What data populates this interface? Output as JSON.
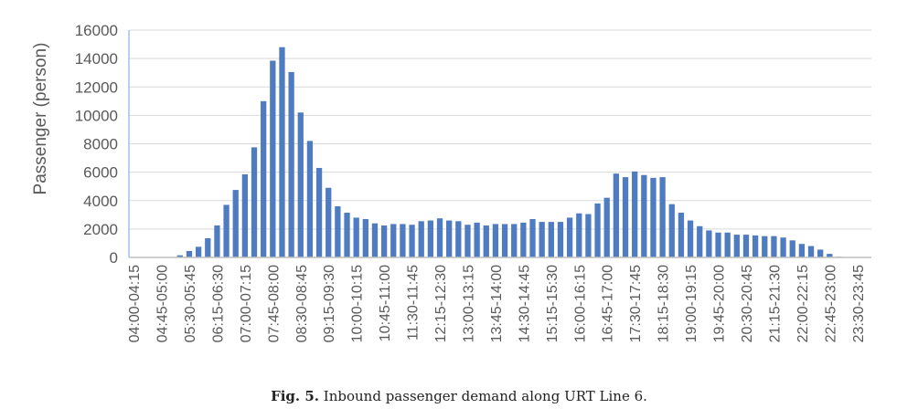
{
  "chart_data": {
    "type": "bar",
    "title": "",
    "xlabel": "",
    "ylabel": "Passenger (person)",
    "ylim": [
      0,
      16000
    ],
    "yticks": [
      0,
      2000,
      4000,
      6000,
      8000,
      10000,
      12000,
      14000,
      16000
    ],
    "grid": true,
    "legend": "none",
    "bar_color": "#4f7cc0",
    "categories": [
      "04:00-04:15",
      "04:15-04:30",
      "04:30-04:45",
      "04:45-05:00",
      "05:00-05:15",
      "05:15-05:30",
      "05:30-05:45",
      "05:45-06:00",
      "06:00-06:15",
      "06:15-06:30",
      "06:30-06:45",
      "06:45-07:00",
      "07:00-07:15",
      "07:15-07:30",
      "07:30-07:45",
      "07:45-08:00",
      "08:00-08:15",
      "08:15-08:30",
      "08:30-08:45",
      "08:45-09:00",
      "09:00-09:15",
      "09:15-09:30",
      "09:30-09:45",
      "09:45-10:00",
      "10:00-10:15",
      "10:15-10:30",
      "10:30-10:45",
      "10:45-11:00",
      "11:00-11:15",
      "11:15-11:30",
      "11:30-11:45",
      "11:45-12:00",
      "12:00-12:15",
      "12:15-12:30",
      "12:30-12:45",
      "12:45-13:00",
      "13:00-13:15",
      "13:15-13:30",
      "13:30-13:45",
      "13:45-14:00",
      "14:00-14:15",
      "14:15-14:30",
      "14:30-14:45",
      "14:45-15:00",
      "15:00-15:15",
      "15:15-15:30",
      "15:30-15:45",
      "15:45-16:00",
      "16:00-16:15",
      "16:15-16:30",
      "16:30-16:45",
      "16:45-17:00",
      "17:00-17:15",
      "17:15-17:30",
      "17:30-17:45",
      "17:45-18:00",
      "18:00-18:15",
      "18:15-18:30",
      "18:30-18:45",
      "18:45-19:00",
      "19:00-19:15",
      "19:15-19:30",
      "19:30-19:45",
      "19:45-20:00",
      "20:00-20:15",
      "20:15-20:30",
      "20:30-20:45",
      "20:45-21:00",
      "21:00-21:15",
      "21:15-21:30",
      "21:30-21:45",
      "21:45-22:00",
      "22:00-22:15",
      "22:15-22:30",
      "22:30-22:45",
      "22:45-23:00",
      "23:00-23:15",
      "23:15-23:30",
      "23:30-23:45",
      "23:45-24:00"
    ],
    "tick_labels": [
      "04:00-04:15",
      "",
      "",
      "04:45-05:00",
      "",
      "",
      "05:30-05:45",
      "",
      "",
      "06:15-06:30",
      "",
      "",
      "07:00-07:15",
      "",
      "",
      "07:45-08:00",
      "",
      "",
      "08:30-08:45",
      "",
      "",
      "09:15-09:30",
      "",
      "",
      "10:00-10:15",
      "",
      "",
      "10:45-11:00",
      "",
      "",
      "11:30-11:45",
      "",
      "",
      "12:15-12:30",
      "",
      "",
      "13:00-13:15",
      "",
      "",
      "13:45-14:00",
      "",
      "",
      "14:30-14:45",
      "",
      "",
      "15:15-15:30",
      "",
      "",
      "16:00-16:15",
      "",
      "",
      "16:45-17:00",
      "",
      "",
      "17:30-17:45",
      "",
      "",
      "18:15-18:30",
      "",
      "",
      "19:00-19:15",
      "",
      "",
      "19:45-20:00",
      "",
      "",
      "20:30-20:45",
      "",
      "",
      "21:15-21:30",
      "",
      "",
      "22:00-22:15",
      "",
      "",
      "22:45-23:00",
      "",
      "",
      "23:30-23:45",
      ""
    ],
    "values": [
      0,
      0,
      0,
      0,
      0,
      150,
      450,
      750,
      1350,
      2250,
      3700,
      4750,
      5850,
      7750,
      11000,
      13850,
      14800,
      13050,
      10200,
      8200,
      6300,
      4900,
      3600,
      3150,
      2800,
      2700,
      2400,
      2250,
      2350,
      2350,
      2300,
      2550,
      2600,
      2750,
      2600,
      2550,
      2300,
      2450,
      2250,
      2350,
      2350,
      2350,
      2450,
      2700,
      2500,
      2500,
      2500,
      2800,
      3100,
      3050,
      3800,
      4200,
      5900,
      5650,
      6050,
      5800,
      5600,
      5650,
      3750,
      3150,
      2600,
      2200,
      1900,
      1750,
      1750,
      1600,
      1600,
      1550,
      1500,
      1500,
      1400,
      1200,
      950,
      800,
      550,
      250,
      50,
      0,
      0,
      0
    ]
  },
  "caption": {
    "label": "Fig. 5.",
    "text": " Inbound passenger demand along URT Line 6."
  }
}
